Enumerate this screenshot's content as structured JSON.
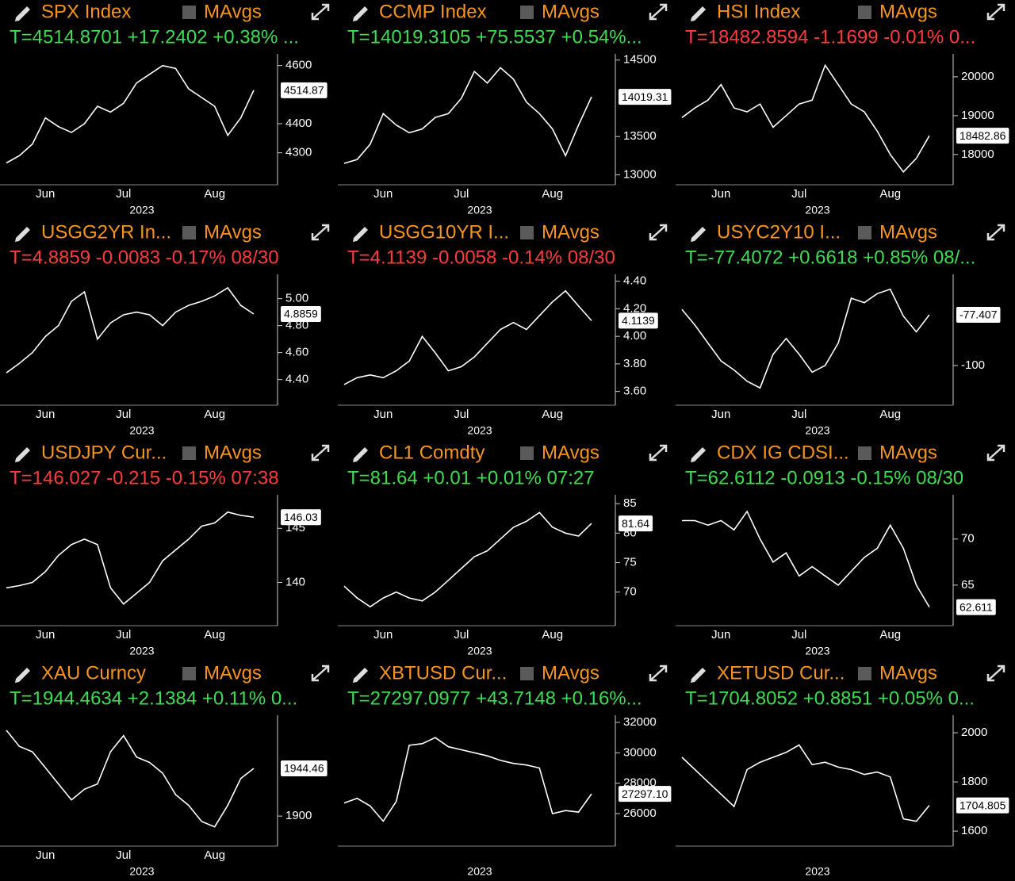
{
  "chart_data": [
    {
      "type": "line",
      "title": "SPX Index",
      "legend_label": "MAvgs",
      "quote": "T=4514.8701 +17.2402 +0.38% ...",
      "quote_color": "#3fdc52",
      "color": "#ffffff",
      "categories": [
        null,
        null,
        null,
        "Jun",
        null,
        null,
        null,
        null,
        null,
        "Jul",
        null,
        null,
        null,
        null,
        null,
        null,
        "Aug",
        null,
        null,
        null
      ],
      "values": [
        4265,
        4290,
        4330,
        4420,
        4390,
        4370,
        4400,
        4460,
        4440,
        4470,
        4540,
        4570,
        4600,
        4590,
        4520,
        4490,
        4460,
        4360,
        4420,
        4514.87
      ],
      "ylim": [
        4190,
        4640
      ],
      "yticks": [
        4300,
        4400,
        4600
      ],
      "last_label": "4514.87",
      "xlabel": "2023"
    },
    {
      "type": "line",
      "title": "CCMP Index",
      "legend_label": "MAvgs",
      "quote": "T=14019.3105 +75.5537 +0.54%...",
      "quote_color": "#3fdc52",
      "color": "#ffffff",
      "categories": [
        null,
        null,
        null,
        "Jun",
        null,
        null,
        null,
        null,
        null,
        "Jul",
        null,
        null,
        null,
        null,
        null,
        null,
        "Aug",
        null,
        null,
        null
      ],
      "values": [
        13150,
        13200,
        13400,
        13800,
        13650,
        13550,
        13600,
        13750,
        13800,
        14000,
        14350,
        14200,
        14400,
        14250,
        13950,
        13800,
        13600,
        13250,
        13650,
        14019.31
      ],
      "ylim": [
        12870,
        14580
      ],
      "yticks": [
        13000,
        13500,
        14500
      ],
      "last_label": "14019.31",
      "xlabel": "2023"
    },
    {
      "type": "line",
      "title": "HSI Index",
      "legend_label": "MAvgs",
      "quote": "T=18482.8594 -1.1699 -0.01% 0...",
      "quote_color": "#ff3b3b",
      "color": "#ffffff",
      "categories": [
        null,
        null,
        null,
        "Jun",
        null,
        null,
        null,
        null,
        null,
        "Jul",
        null,
        null,
        null,
        null,
        null,
        null,
        "Aug",
        null,
        null,
        null
      ],
      "values": [
        18950,
        19200,
        19400,
        19800,
        19200,
        19100,
        19300,
        18700,
        19000,
        19300,
        19400,
        20300,
        19800,
        19300,
        19100,
        18600,
        18000,
        17550,
        17900,
        18482.86
      ],
      "ylim": [
        17220,
        20590
      ],
      "yticks": [
        18000,
        19000,
        20000
      ],
      "last_label": "18482.86",
      "xlabel": "2023"
    },
    {
      "type": "line",
      "title": "USGG2YR In...",
      "legend_label": "MAvgs",
      "quote": "T=4.8859 -0.0083 -0.17% 08/30",
      "quote_color": "#ff3b3b",
      "color": "#ffffff",
      "categories": [
        null,
        null,
        null,
        "Jun",
        null,
        null,
        null,
        null,
        null,
        "Jul",
        null,
        null,
        null,
        null,
        null,
        null,
        "Aug",
        null,
        null,
        null
      ],
      "values": [
        4.45,
        4.52,
        4.6,
        4.72,
        4.8,
        4.98,
        5.05,
        4.7,
        4.82,
        4.88,
        4.9,
        4.88,
        4.8,
        4.9,
        4.95,
        4.98,
        5.02,
        5.08,
        4.95,
        4.8859
      ],
      "ylim": [
        4.21,
        5.18
      ],
      "yticks": [
        {
          "value": 4.4,
          "label": "4.40"
        },
        {
          "value": 4.6,
          "label": "4.60"
        },
        {
          "value": 4.8,
          "label": "4.80"
        },
        {
          "value": 5,
          "label": "5.00"
        }
      ],
      "last_label": "4.8859",
      "xlabel": "2023"
    },
    {
      "type": "line",
      "title": "USGG10YR I...",
      "legend_label": "MAvgs",
      "quote": "T=4.1139 -0.0058 -0.14% 08/30",
      "quote_color": "#ff3b3b",
      "color": "#ffffff",
      "categories": [
        null,
        null,
        null,
        "Jun",
        null,
        null,
        null,
        null,
        null,
        "Jul",
        null,
        null,
        null,
        null,
        null,
        null,
        "Aug",
        null,
        null,
        null
      ],
      "values": [
        3.65,
        3.7,
        3.72,
        3.7,
        3.75,
        3.82,
        4.0,
        3.88,
        3.75,
        3.78,
        3.85,
        3.95,
        4.05,
        4.1,
        4.05,
        4.15,
        4.25,
        4.33,
        4.22,
        4.1139
      ],
      "ylim": [
        3.5,
        4.45
      ],
      "yticks": [
        {
          "value": 3.6,
          "label": "3.60"
        },
        {
          "value": 3.8,
          "label": "3.80"
        },
        {
          "value": 4,
          "label": "4.00"
        },
        {
          "value": 4.2,
          "label": "4.20"
        },
        {
          "value": 4.4,
          "label": "4.40"
        }
      ],
      "last_label": "4.1139",
      "xlabel": "2023"
    },
    {
      "type": "line",
      "title": "USYC2Y10 I...",
      "legend_label": "MAvgs",
      "quote": "T=-77.4072 +0.6618 +0.85% 08/...",
      "quote_color": "#3fdc52",
      "color": "#ffffff",
      "categories": [
        null,
        null,
        null,
        "Jun",
        null,
        null,
        null,
        null,
        null,
        "Jul",
        null,
        null,
        null,
        null,
        null,
        null,
        "Aug",
        null,
        null,
        null
      ],
      "values": [
        -75,
        -82,
        -90,
        -98,
        -102,
        -107,
        -110,
        -95,
        -88,
        -95,
        -103,
        -100,
        -90,
        -70,
        -72,
        -68,
        -66,
        -78,
        -85,
        -77.4072
      ],
      "ylim": [
        -117.7,
        -59.4
      ],
      "yticks": [
        -100
      ],
      "last_label": "-77.407",
      "xlabel": "2023"
    },
    {
      "type": "line",
      "title": "USDJPY Cur...",
      "legend_label": "MAvgs",
      "quote": "T=146.027 -0.215 -0.15% 07:38",
      "quote_color": "#ff3b3b",
      "color": "#ffffff",
      "categories": [
        null,
        null,
        null,
        "Jun",
        null,
        null,
        null,
        null,
        null,
        "Jul",
        null,
        null,
        null,
        null,
        null,
        null,
        "Aug",
        null,
        null,
        null
      ],
      "values": [
        139.5,
        139.7,
        140,
        141,
        142.5,
        143.5,
        144,
        143.5,
        139.5,
        138,
        139,
        140,
        142,
        143,
        144,
        145.2,
        145.5,
        146.5,
        146.2,
        146.03
      ],
      "ylim": [
        136,
        148.1
      ],
      "yticks": [
        140,
        145
      ],
      "last_label": "146.03",
      "xlabel": "2023"
    },
    {
      "type": "line",
      "title": "CL1 Comdty",
      "legend_label": "MAvgs",
      "quote": "T=81.64 +0.01 +0.01% 07:27",
      "quote_color": "#3fdc52",
      "color": "#ffffff",
      "categories": [
        null,
        null,
        null,
        "Jun",
        null,
        null,
        null,
        null,
        null,
        "Jul",
        null,
        null,
        null,
        null,
        null,
        null,
        "Aug",
        null,
        null,
        null
      ],
      "values": [
        71,
        69,
        67.5,
        69,
        70,
        69,
        68.5,
        70,
        72,
        74,
        76,
        77,
        79,
        81,
        82,
        83.5,
        81,
        80,
        79.5,
        81.64
      ],
      "ylim": [
        64.3,
        86.5
      ],
      "yticks": [
        70,
        75,
        80,
        85
      ],
      "last_label": "81.64",
      "xlabel": "2023"
    },
    {
      "type": "line",
      "title": "CDX IG CDSI...",
      "legend_label": "MAvgs",
      "quote": "T=62.6112 -0.0913 -0.15% 08/30",
      "quote_color": "#3fdc52",
      "color": "#ffffff",
      "categories": [
        null,
        null,
        null,
        "Jun",
        null,
        null,
        null,
        null,
        null,
        "Jul",
        null,
        null,
        null,
        null,
        null,
        null,
        "Aug",
        null,
        null,
        null
      ],
      "values": [
        72,
        72,
        71.5,
        72,
        71,
        73,
        70,
        67.5,
        68.5,
        66,
        67,
        66,
        65,
        66.5,
        68,
        69,
        71.5,
        69,
        65,
        62.6112
      ],
      "ylim": [
        60.6,
        74.8
      ],
      "yticks": [
        65,
        70
      ],
      "last_label": "62.611",
      "xlabel": "2023"
    },
    {
      "type": "line",
      "title": "XAU Curncy",
      "legend_label": "MAvgs",
      "quote": "T=1944.4634 +2.1384 +0.11% 0...",
      "quote_color": "#3fdc52",
      "color": "#ffffff",
      "categories": [
        null,
        null,
        null,
        "Jun",
        null,
        null,
        null,
        null,
        null,
        "Jul",
        null,
        null,
        null,
        null,
        null,
        null,
        "Aug",
        null,
        null,
        null
      ],
      "values": [
        1980,
        1965,
        1960,
        1945,
        1930,
        1915,
        1925,
        1930,
        1960,
        1975,
        1955,
        1950,
        1940,
        1920,
        1910,
        1895,
        1890,
        1910,
        1935,
        1944.46
      ],
      "ylim": [
        1872,
        1994
      ],
      "yticks": [
        1900
      ],
      "last_label": "1944.46",
      "xlabel": "2023"
    },
    {
      "type": "line",
      "title": "XBTUSD Cur...",
      "legend_label": "MAvgs",
      "quote": "T=27297.0977 +43.7148 +0.16%...",
      "quote_color": "#3fdc52",
      "color": "#ffffff",
      "values": [
        26700,
        27000,
        26500,
        25500,
        26800,
        30500,
        30600,
        31000,
        30400,
        30200,
        30000,
        29800,
        29500,
        29300,
        29200,
        29000,
        26000,
        26200,
        26100,
        27297.1
      ],
      "ylim": [
        23860,
        32470
      ],
      "yticks": [
        26000,
        28000,
        30000,
        32000
      ],
      "last_label": "27297.10",
      "xlabel": "2023"
    },
    {
      "type": "line",
      "title": "XETUSD Cur...",
      "legend_label": "MAvgs",
      "quote": "T=1704.8052 +0.8851 +0.05% 0...",
      "quote_color": "#3fdc52",
      "color": "#ffffff",
      "values": [
        1900,
        1850,
        1800,
        1750,
        1700,
        1850,
        1880,
        1900,
        1920,
        1950,
        1870,
        1880,
        1860,
        1850,
        1830,
        1840,
        1820,
        1650,
        1640,
        1704.805
      ],
      "ylim": [
        1539,
        2071
      ],
      "yticks": [
        1600,
        1800,
        2000
      ],
      "last_label": "1704.805",
      "xlabel": "2023"
    }
  ]
}
